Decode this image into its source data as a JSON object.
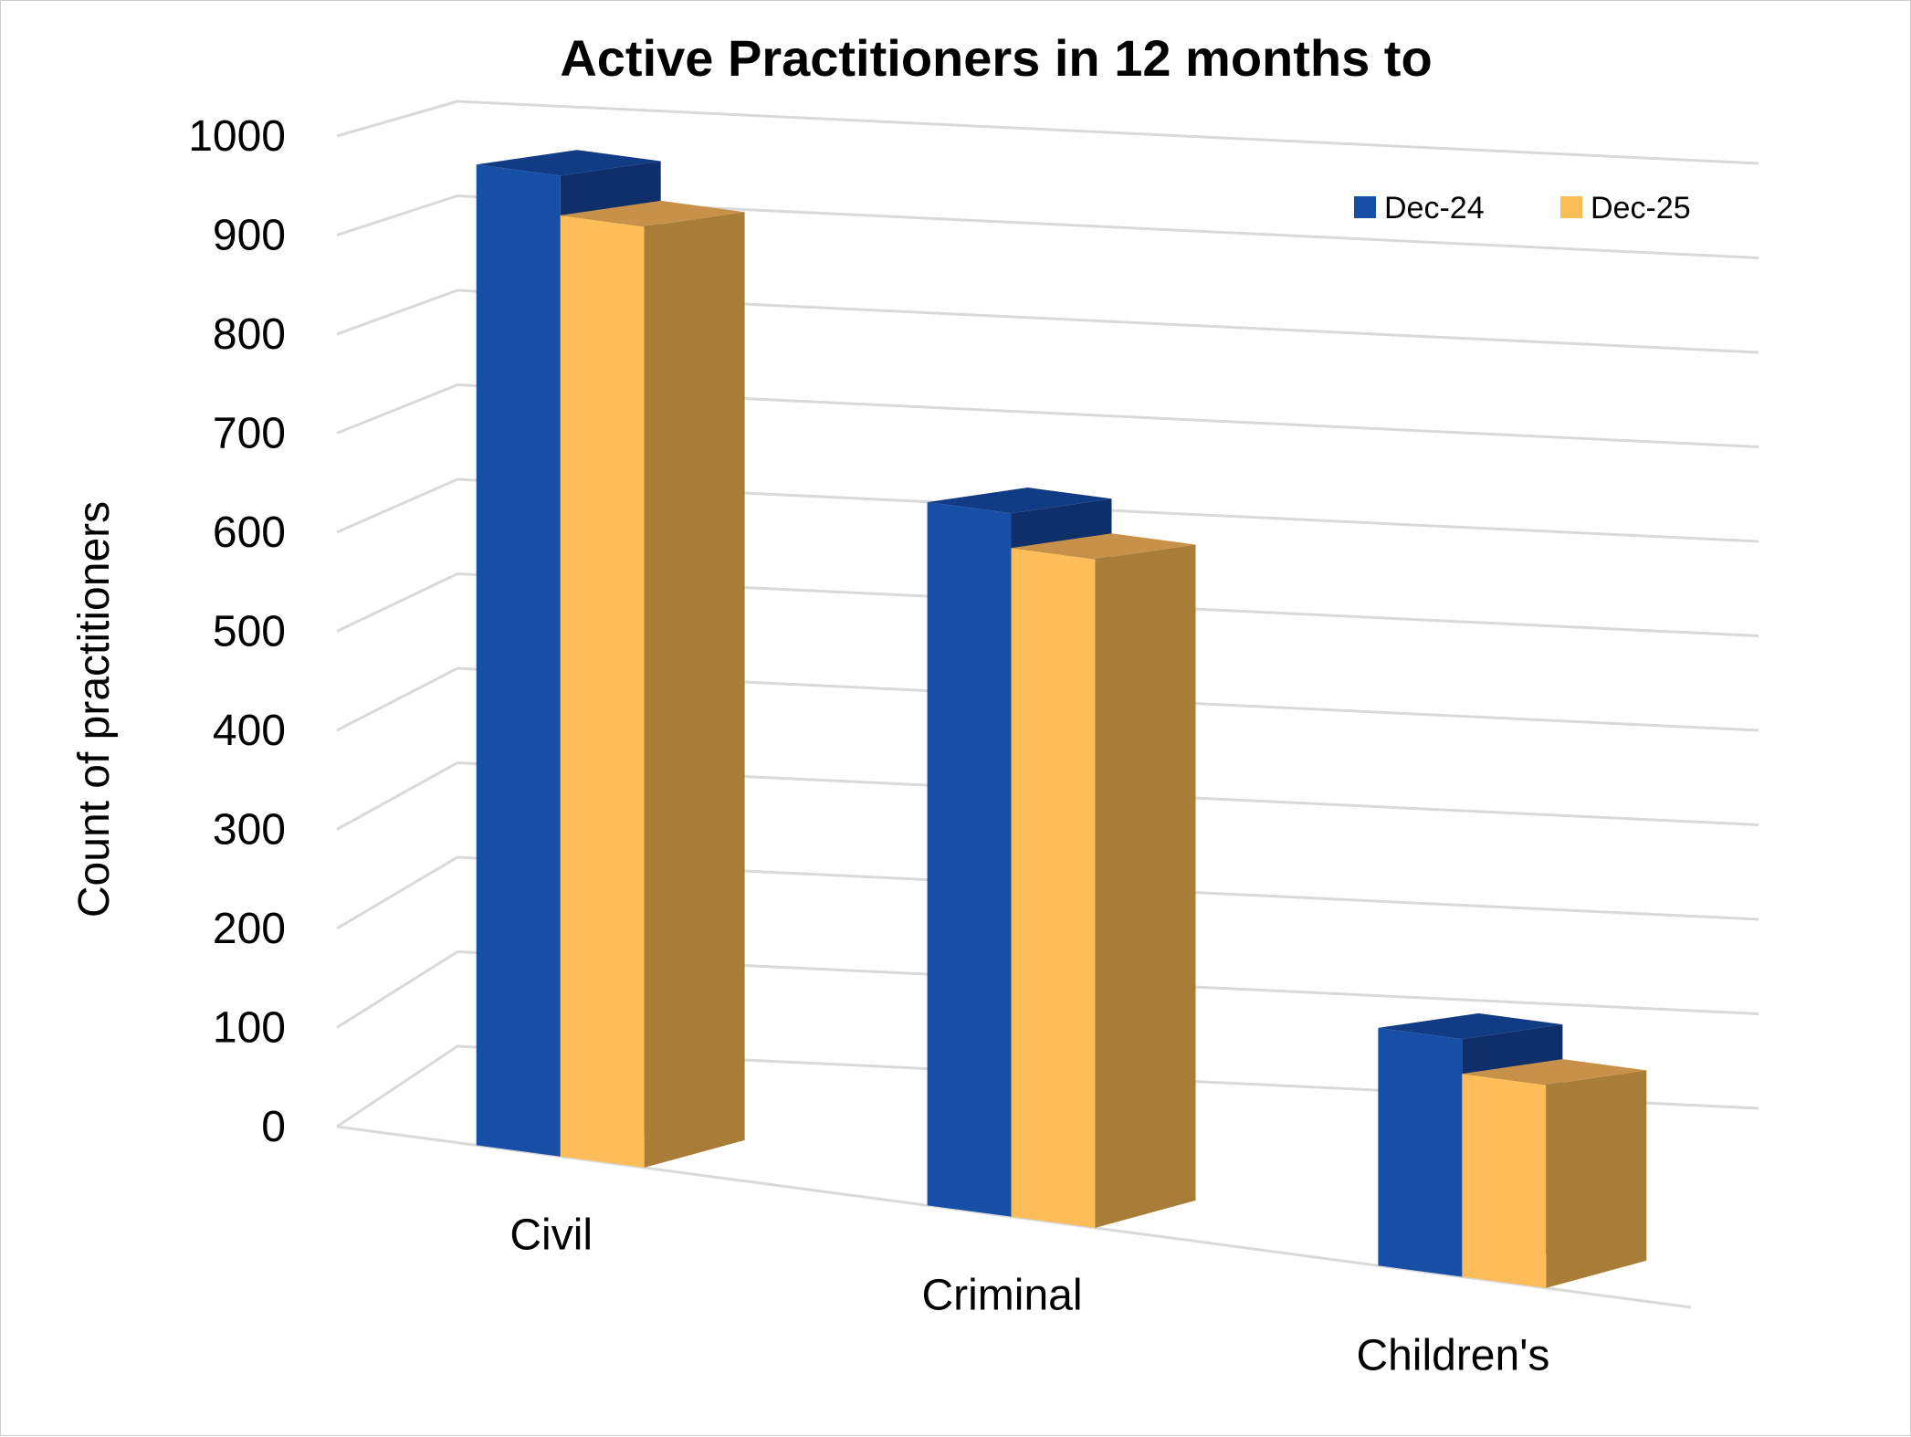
{
  "chart_data": {
    "type": "bar",
    "title": "Active Practitioners in 12 months to",
    "ylabel": "Count of practitioners",
    "xlabel": "",
    "ylim": [
      0,
      1000
    ],
    "yticks": [
      0,
      100,
      200,
      300,
      400,
      500,
      600,
      700,
      800,
      900,
      1000
    ],
    "categories": [
      "Civil",
      "Criminal",
      "Children's"
    ],
    "series": [
      {
        "name": "Dec-24",
        "values": [
          990,
          710,
          240
        ],
        "color": "#174ea6"
      },
      {
        "name": "Dec-25",
        "values": [
          950,
          675,
          205
        ],
        "color": "#fdbd59"
      }
    ],
    "legend_position": "top-right",
    "grid": true,
    "style": "3d-clustered-column"
  }
}
